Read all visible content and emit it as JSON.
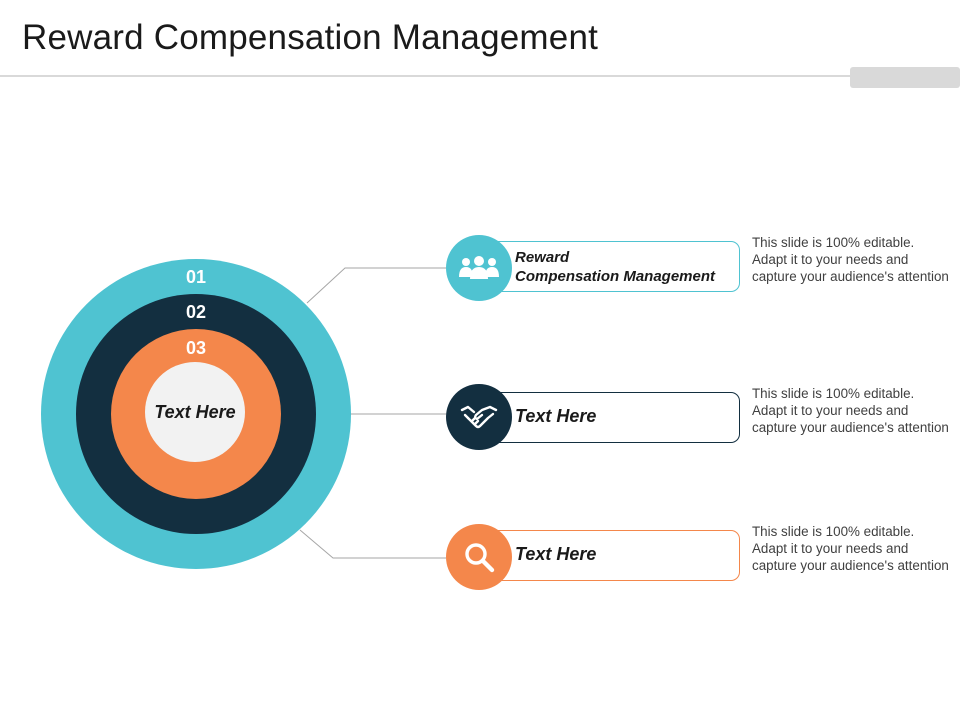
{
  "title": "Reward Compensation Management",
  "rings": [
    {
      "number": "01",
      "color": "#4fc3d1"
    },
    {
      "number": "02",
      "color": "#132f40"
    },
    {
      "number": "03",
      "color": "#f4874b"
    }
  ],
  "center_label": "Text Here",
  "items": [
    {
      "title_line1": "Reward",
      "title_line2": "Compensation Management",
      "icon": "people-group-icon",
      "color": "#4fc3d1",
      "description": "This slide is 100% editable. Adapt it to your needs and capture your audience's attention"
    },
    {
      "title": "Text Here",
      "icon": "handshake-icon",
      "color": "#132f40",
      "description": "This slide is 100% editable. Adapt it to your needs and capture your audience's attention"
    },
    {
      "title": "Text Here",
      "icon": "magnifier-icon",
      "color": "#f4874b",
      "description": "This slide is 100% editable. Adapt it to your needs and capture your audience's attention"
    }
  ]
}
